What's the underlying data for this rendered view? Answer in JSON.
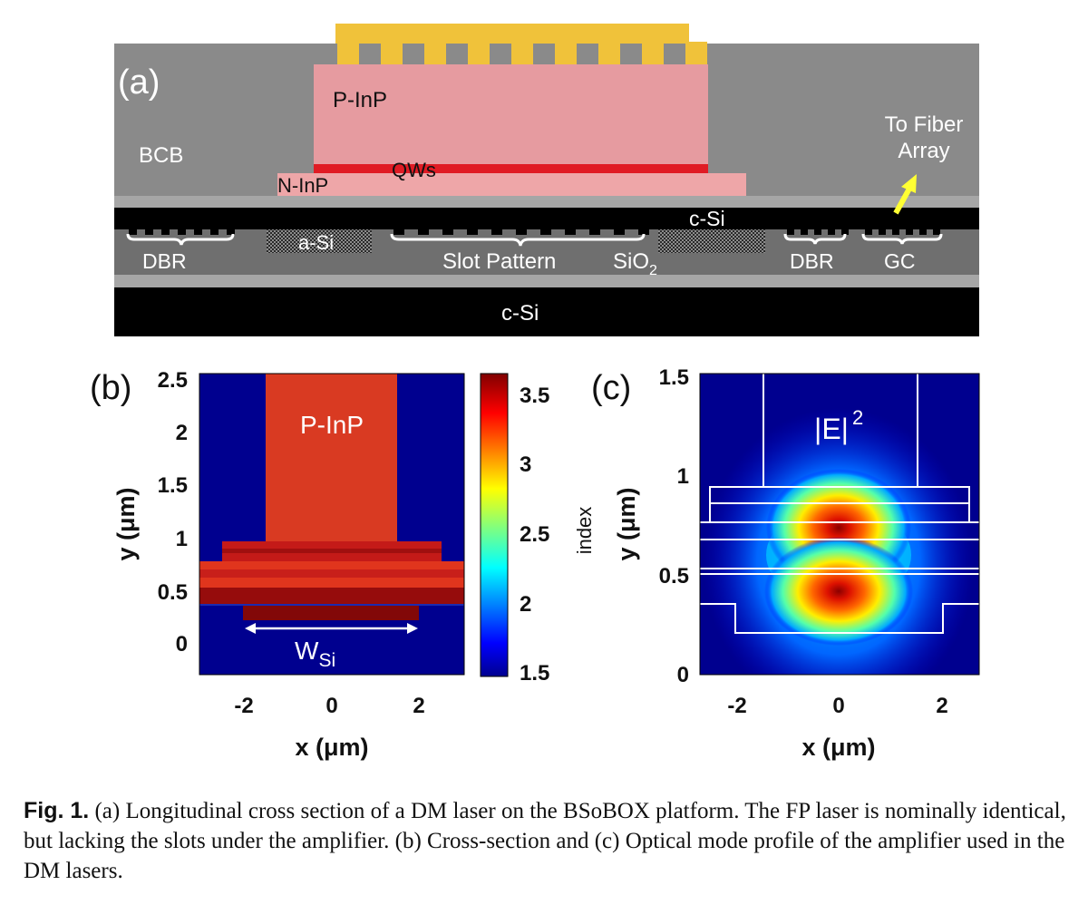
{
  "figure": {
    "colors": {
      "bcb": "#8a8a8a",
      "top_si": "#000000",
      "box_oxide": "#6f6f6f",
      "thin_oxide": "#a6a6a6",
      "metal": "#f0c23a",
      "p_inp": "#e69ba0",
      "n_inp": "#eea6a8",
      "qw": "#e01b24",
      "arrow": "#ffff33"
    },
    "panel_a": {
      "tag": "(a)",
      "labels": {
        "bcb": "BCB",
        "p_inp": "P-InP",
        "qws": "QWs",
        "n_inp": "N-InP",
        "to_fiber_line1": "To Fiber",
        "to_fiber_line2": "Array",
        "c_si_top": "c-Si",
        "dbr_left": "DBR",
        "a_si": "a-Si",
        "slot_pattern": "Slot Pattern",
        "sio2_base": "SiO",
        "sio2_sub": "2",
        "dbr_right": "DBR",
        "gc": "GC",
        "c_si_substrate": "c-Si"
      }
    },
    "panel_b": {
      "tag": "(b)",
      "region_label": "P-InP",
      "width_label_base": "W",
      "width_label_sub": "Si",
      "xlabel": "x (μm)",
      "ylabel": "y (μm)",
      "x_ticks": [
        "-2",
        "0",
        "2"
      ],
      "y_ticks": [
        "0",
        "0.5",
        "1",
        "1.5",
        "2",
        "2.5"
      ],
      "colorbar_ticks": [
        "1.5",
        "2",
        "2.5",
        "3",
        "3.5"
      ],
      "colorbar_label": "index"
    },
    "panel_c": {
      "tag": "(c)",
      "field_label": "|E|",
      "field_exp": "2",
      "xlabel": "x (μm)",
      "ylabel": "y (μm)",
      "x_ticks": [
        "-2",
        "0",
        "2"
      ],
      "y_ticks": [
        "0",
        "0.5",
        "1",
        "1.5"
      ]
    }
  },
  "caption": {
    "label": "Fig. 1.",
    "text": " (a) Longitudinal cross section of a DM laser on the BSoBOX platform. The FP laser is nominally identical, but lacking the slots under the amplifier. (b) Cross-section and (c) Optical mode profile of the amplifier used in the DM lasers."
  }
}
